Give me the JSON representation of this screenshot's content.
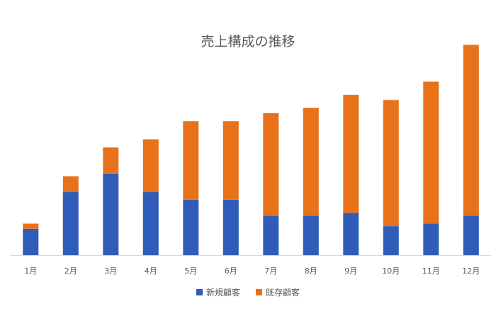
{
  "chart_data": {
    "type": "bar",
    "stacked": true,
    "title": "売上構成の推移",
    "categories": [
      "1月",
      "2月",
      "3月",
      "4月",
      "5月",
      "6月",
      "7月",
      "8月",
      "9月",
      "10月",
      "11月",
      "12月"
    ],
    "series": [
      {
        "name": "新規顧客",
        "color": "#2E5CB8",
        "values": [
          10,
          24,
          31,
          24,
          21,
          21,
          15,
          15,
          16,
          11,
          12,
          15
        ]
      },
      {
        "name": "既存顧客",
        "color": "#E8711A",
        "values": [
          2,
          6,
          10,
          20,
          30,
          30,
          39,
          41,
          45,
          48,
          54,
          65
        ]
      }
    ],
    "ylim": [
      0,
      82
    ],
    "grid": false,
    "legend_position": "bottom"
  }
}
